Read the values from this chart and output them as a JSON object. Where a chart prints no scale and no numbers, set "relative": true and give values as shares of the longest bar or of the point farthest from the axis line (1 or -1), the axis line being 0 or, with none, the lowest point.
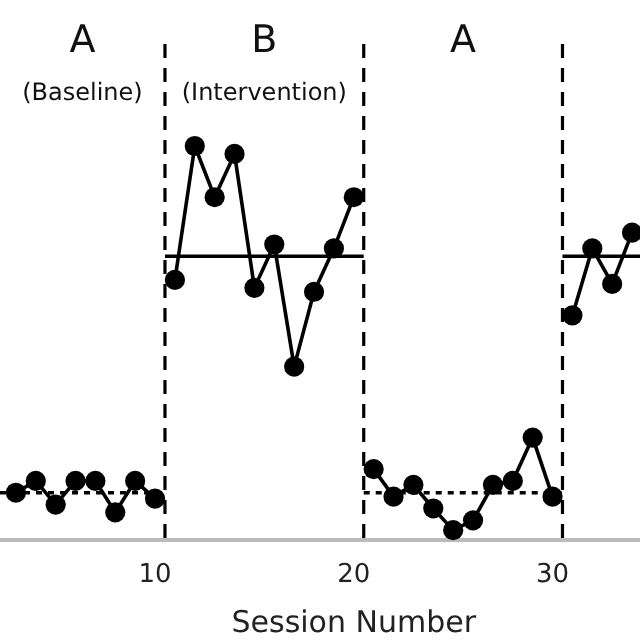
{
  "chart_data": {
    "type": "line",
    "relative": true,
    "xlabel": "Session Number",
    "xlim": [
      2.2,
      34.4
    ],
    "xticks": [
      10,
      20,
      30
    ],
    "marker": "circle",
    "line_style": "solid",
    "grid": false,
    "annotations": [
      "A",
      "(Baseline)",
      "B",
      "(Intervention)",
      "A"
    ],
    "ref_lines": [
      {
        "axis": "x",
        "value": 10.5,
        "line_style": "dashed",
        "color": "#000000"
      },
      {
        "axis": "x",
        "value": 20.5,
        "line_style": "dashed",
        "color": "#000000"
      },
      {
        "axis": "x",
        "value": 30.5,
        "line_style": "dashed",
        "color": "#000000"
      }
    ],
    "series": [
      {
        "color": "#000000",
        "x": [
          3,
          4,
          5,
          6,
          7,
          8,
          9,
          10
        ],
        "values": [
          0.12,
          0.15,
          0.09,
          0.15,
          0.15,
          0.07,
          0.15,
          0.105
        ]
      },
      {
        "color": "#000000",
        "x": [
          11,
          12,
          13,
          14,
          15,
          16,
          17,
          18,
          19,
          20
        ],
        "values": [
          0.66,
          1,
          0.87,
          0.98,
          0.64,
          0.75,
          0.44,
          0.63,
          0.74,
          0.87
        ]
      },
      {
        "color": "#000000",
        "x": [
          21,
          22,
          23,
          24,
          25,
          26,
          27,
          28,
          29,
          30
        ],
        "values": [
          0.18,
          0.11,
          0.14,
          0.08,
          0.025,
          0.05,
          0.14,
          0.15,
          0.26,
          0.11
        ]
      },
      {
        "color": "#000000",
        "x": [
          31,
          32,
          33,
          34
        ],
        "values": [
          0.57,
          0.74,
          0.65,
          0.78
        ]
      },
      {
        "color": "#000000",
        "marker": "none",
        "line_style": "solid",
        "x": [
          10.5,
          20.5,
          25,
          30.5,
          34.4
        ],
        "values": [
          0.72,
          0.72,
          null,
          0.72,
          0.72
        ]
      },
      {
        "color": "#000000",
        "marker": "none",
        "line_style": "dotted",
        "x": [
          2.2,
          10.5,
          15,
          20.5,
          30.5
        ],
        "values": [
          0.12,
          0.12,
          null,
          0.12,
          0.12
        ]
      }
    ]
  }
}
